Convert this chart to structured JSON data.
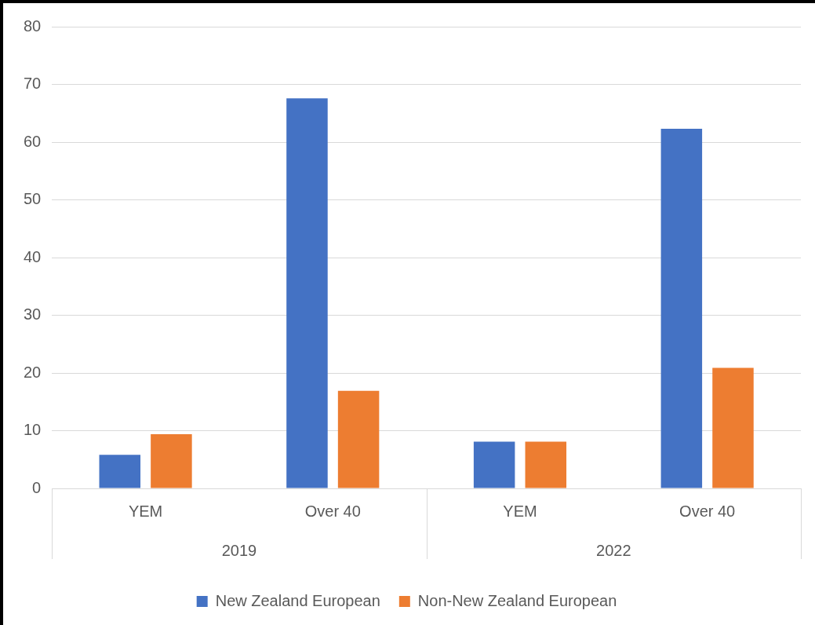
{
  "chart_data": {
    "type": "bar",
    "categories": [
      "YEM",
      "Over 40",
      "YEM",
      "Over 40"
    ],
    "series": [
      {
        "name": "New Zealand European",
        "color": "#4472c4",
        "values": [
          5.8,
          67.6,
          8.1,
          62.3
        ]
      },
      {
        "name": "Non-New Zealand European",
        "color": "#ed7d31",
        "values": [
          9.4,
          16.9,
          8.1,
          20.9
        ]
      }
    ],
    "annotations": [
      "2019",
      "2022"
    ],
    "ylim": [
      0,
      80
    ],
    "yticks": [
      0,
      10,
      20,
      30,
      40,
      50,
      60,
      70,
      80
    ],
    "grid": "y",
    "legend": "bottom"
  }
}
